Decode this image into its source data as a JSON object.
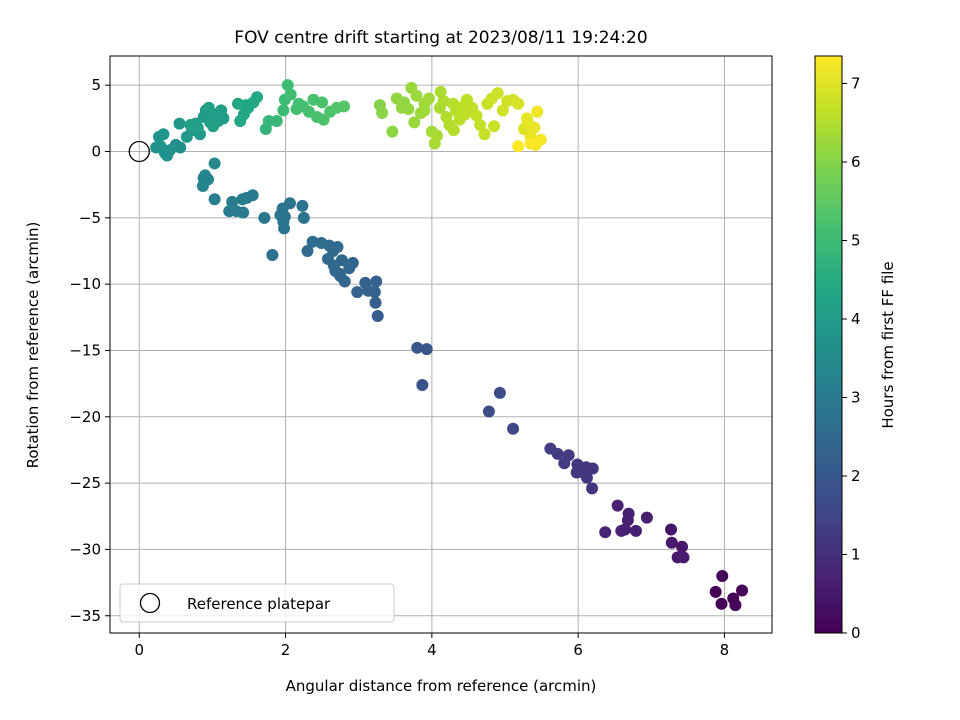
{
  "chart_data": {
    "type": "scatter",
    "title": "FOV centre drift starting at 2023/08/11 19:24:20",
    "xlabel": "Angular distance from reference (arcmin)",
    "ylabel": "Rotation from reference (arcmin)",
    "xlim": [
      -0.4,
      8.65
    ],
    "ylim": [
      -36.3,
      7.2
    ],
    "xticks": [
      0,
      2,
      4,
      6,
      8
    ],
    "yticks": [
      5,
      0,
      -5,
      -10,
      -15,
      -20,
      -25,
      -30,
      -35
    ],
    "xtick_labels": [
      "0",
      "2",
      "4",
      "6",
      "8"
    ],
    "ytick_labels": [
      "5",
      "0",
      "−5",
      "−10",
      "−15",
      "−20",
      "−25",
      "−30",
      "−35"
    ],
    "grid": true,
    "colormap": "viridis",
    "colorbar": {
      "label": "Hours from first FF file",
      "range": [
        0,
        7.35
      ],
      "ticks": [
        0,
        1,
        2,
        3,
        4,
        5,
        6,
        7
      ],
      "tick_labels": [
        "0",
        "1",
        "2",
        "3",
        "4",
        "5",
        "6",
        "7"
      ]
    },
    "legend": {
      "placement": "lower-left",
      "entries": [
        "Reference platepar"
      ]
    },
    "reference_point": {
      "x": 0,
      "y": 0
    },
    "series": [
      {
        "points": [
          {
            "x": 7.97,
            "y": -32.0,
            "c": 0.05
          },
          {
            "x": 7.88,
            "y": -33.2,
            "c": 0.04
          },
          {
            "x": 8.24,
            "y": -33.1,
            "c": 0.06
          },
          {
            "x": 8.12,
            "y": -33.7,
            "c": 0.08
          },
          {
            "x": 8.15,
            "y": -34.2,
            "c": 0.07
          },
          {
            "x": 7.96,
            "y": -34.1,
            "c": 0.03
          },
          {
            "x": 7.27,
            "y": -28.5,
            "c": 0.45
          },
          {
            "x": 7.28,
            "y": -29.5,
            "c": 0.5
          },
          {
            "x": 7.42,
            "y": -29.8,
            "c": 0.48
          },
          {
            "x": 7.36,
            "y": -30.6,
            "c": 0.52
          },
          {
            "x": 7.44,
            "y": -30.6,
            "c": 0.55
          },
          {
            "x": 6.94,
            "y": -27.6,
            "c": 0.6
          },
          {
            "x": 6.79,
            "y": -28.6,
            "c": 0.62
          },
          {
            "x": 6.69,
            "y": -27.3,
            "c": 0.65
          },
          {
            "x": 6.68,
            "y": -27.8,
            "c": 0.66
          },
          {
            "x": 6.59,
            "y": -28.6,
            "c": 0.7
          },
          {
            "x": 6.64,
            "y": -28.5,
            "c": 0.68
          },
          {
            "x": 6.54,
            "y": -26.7,
            "c": 0.72
          },
          {
            "x": 6.37,
            "y": -28.7,
            "c": 0.74
          },
          {
            "x": 5.62,
            "y": -22.4,
            "c": 1.3
          },
          {
            "x": 5.72,
            "y": -22.8,
            "c": 1.28
          },
          {
            "x": 5.81,
            "y": -23.5,
            "c": 1.26
          },
          {
            "x": 5.87,
            "y": -22.9,
            "c": 1.25
          },
          {
            "x": 5.99,
            "y": -23.6,
            "c": 1.22
          },
          {
            "x": 6.02,
            "y": -23.9,
            "c": 1.2
          },
          {
            "x": 6.07,
            "y": -24.2,
            "c": 1.18
          },
          {
            "x": 6.11,
            "y": -23.8,
            "c": 1.16
          },
          {
            "x": 5.98,
            "y": -24.2,
            "c": 1.15
          },
          {
            "x": 6.12,
            "y": -24.6,
            "c": 1.14
          },
          {
            "x": 6.2,
            "y": -23.9,
            "c": 1.12
          },
          {
            "x": 6.19,
            "y": -25.4,
            "c": 1.1
          },
          {
            "x": 5.11,
            "y": -20.9,
            "c": 1.55
          },
          {
            "x": 4.93,
            "y": -18.2,
            "c": 1.7
          },
          {
            "x": 4.78,
            "y": -19.6,
            "c": 1.75
          },
          {
            "x": 3.8,
            "y": -14.8,
            "c": 1.95
          },
          {
            "x": 3.93,
            "y": -14.9,
            "c": 1.97
          },
          {
            "x": 3.87,
            "y": -17.6,
            "c": 1.9
          },
          {
            "x": 3.26,
            "y": -12.4,
            "c": 2.15
          },
          {
            "x": 3.23,
            "y": -11.4,
            "c": 2.2
          },
          {
            "x": 3.22,
            "y": -10.6,
            "c": 2.25
          },
          {
            "x": 3.24,
            "y": -9.8,
            "c": 2.28
          },
          {
            "x": 3.09,
            "y": -9.9,
            "c": 2.3
          },
          {
            "x": 3.13,
            "y": -10.5,
            "c": 2.32
          },
          {
            "x": 2.98,
            "y": -10.6,
            "c": 2.35
          },
          {
            "x": 2.81,
            "y": -9.8,
            "c": 2.4
          },
          {
            "x": 2.73,
            "y": -9.2,
            "c": 2.42
          },
          {
            "x": 2.77,
            "y": -8.2,
            "c": 2.45
          },
          {
            "x": 2.87,
            "y": -8.8,
            "c": 2.46
          },
          {
            "x": 2.92,
            "y": -8.4,
            "c": 2.44
          },
          {
            "x": 2.66,
            "y": -8.6,
            "c": 2.48
          },
          {
            "x": 2.58,
            "y": -8.1,
            "c": 2.5
          },
          {
            "x": 2.65,
            "y": -7.5,
            "c": 2.52
          },
          {
            "x": 2.75,
            "y": -9.4,
            "c": 2.43
          },
          {
            "x": 2.68,
            "y": -9.0,
            "c": 2.47
          },
          {
            "x": 2.71,
            "y": -7.2,
            "c": 2.55
          },
          {
            "x": 2.6,
            "y": -7.1,
            "c": 2.56
          },
          {
            "x": 2.49,
            "y": -6.9,
            "c": 2.6
          },
          {
            "x": 2.37,
            "y": -6.8,
            "c": 2.62
          },
          {
            "x": 2.3,
            "y": -7.5,
            "c": 2.58
          },
          {
            "x": 2.23,
            "y": -4.1,
            "c": 2.8
          },
          {
            "x": 2.25,
            "y": -5.0,
            "c": 2.78
          },
          {
            "x": 2.06,
            "y": -3.9,
            "c": 2.85
          },
          {
            "x": 1.96,
            "y": -4.3,
            "c": 2.87
          },
          {
            "x": 1.98,
            "y": -5.8,
            "c": 2.83
          },
          {
            "x": 1.97,
            "y": -5.3,
            "c": 2.84
          },
          {
            "x": 1.93,
            "y": -4.8,
            "c": 2.86
          },
          {
            "x": 1.99,
            "y": -4.9,
            "c": 2.82
          },
          {
            "x": 1.82,
            "y": -7.8,
            "c": 2.7
          },
          {
            "x": 1.71,
            "y": -5.0,
            "c": 2.9
          },
          {
            "x": 1.55,
            "y": -3.3,
            "c": 3.0
          },
          {
            "x": 1.47,
            "y": -3.5,
            "c": 3.02
          },
          {
            "x": 1.41,
            "y": -3.6,
            "c": 3.03
          },
          {
            "x": 1.42,
            "y": -4.6,
            "c": 3.05
          },
          {
            "x": 1.33,
            "y": -4.5,
            "c": 3.07
          },
          {
            "x": 1.27,
            "y": -3.8,
            "c": 3.08
          },
          {
            "x": 1.23,
            "y": -4.5,
            "c": 3.09
          },
          {
            "x": 1.03,
            "y": -0.9,
            "c": 3.4
          },
          {
            "x": 1.03,
            "y": -3.6,
            "c": 3.15
          },
          {
            "x": 0.94,
            "y": -2.1,
            "c": 3.3
          },
          {
            "x": 0.9,
            "y": -1.8,
            "c": 3.32
          },
          {
            "x": 0.87,
            "y": -2.6,
            "c": 3.28
          },
          {
            "x": 0.88,
            "y": -2.0,
            "c": 3.31
          },
          {
            "x": 0.56,
            "y": 0.3,
            "c": 3.6
          },
          {
            "x": 0.5,
            "y": 0.5,
            "c": 3.65
          },
          {
            "x": 0.42,
            "y": 0.1,
            "c": 3.7
          },
          {
            "x": 0.35,
            "y": -0.1,
            "c": 3.72
          },
          {
            "x": 0.29,
            "y": 0.4,
            "c": 3.74
          },
          {
            "x": 0.23,
            "y": 0.3,
            "c": 3.75
          },
          {
            "x": 0.27,
            "y": 1.1,
            "c": 3.8
          },
          {
            "x": 0.33,
            "y": 1.3,
            "c": 3.82
          },
          {
            "x": 0.38,
            "y": -0.3,
            "c": 3.68
          },
          {
            "x": 0.55,
            "y": 2.1,
            "c": 3.9
          },
          {
            "x": 0.65,
            "y": 1.1,
            "c": 3.93
          },
          {
            "x": 0.72,
            "y": 1.6,
            "c": 3.95
          },
          {
            "x": 0.77,
            "y": 2.1,
            "c": 3.97
          },
          {
            "x": 0.83,
            "y": 1.3,
            "c": 3.99
          },
          {
            "x": 0.88,
            "y": 2.6,
            "c": 4.0
          },
          {
            "x": 0.91,
            "y": 3.1,
            "c": 4.02
          },
          {
            "x": 0.97,
            "y": 2.2,
            "c": 4.03
          },
          {
            "x": 1.02,
            "y": 2.8,
            "c": 4.05
          },
          {
            "x": 1.08,
            "y": 2.3,
            "c": 4.07
          },
          {
            "x": 1.12,
            "y": 3.1,
            "c": 4.08
          },
          {
            "x": 1.15,
            "y": 2.5,
            "c": 4.1
          },
          {
            "x": 0.95,
            "y": 3.3,
            "c": 4.11
          },
          {
            "x": 1.01,
            "y": 1.9,
            "c": 4.12
          },
          {
            "x": 0.8,
            "y": 1.8,
            "c": 4.13
          },
          {
            "x": 0.7,
            "y": 2.0,
            "c": 4.14
          },
          {
            "x": 1.35,
            "y": 3.6,
            "c": 4.3
          },
          {
            "x": 1.38,
            "y": 2.3,
            "c": 4.32
          },
          {
            "x": 1.43,
            "y": 2.8,
            "c": 4.34
          },
          {
            "x": 1.49,
            "y": 3.3,
            "c": 4.36
          },
          {
            "x": 1.56,
            "y": 3.7,
            "c": 4.4
          },
          {
            "x": 1.61,
            "y": 4.1,
            "c": 4.42
          },
          {
            "x": 1.46,
            "y": 3.5,
            "c": 4.38
          },
          {
            "x": 1.73,
            "y": 1.7,
            "c": 4.8
          },
          {
            "x": 1.77,
            "y": 2.3,
            "c": 4.85
          },
          {
            "x": 1.88,
            "y": 2.3,
            "c": 4.9
          },
          {
            "x": 1.97,
            "y": 3.1,
            "c": 4.95
          },
          {
            "x": 1.99,
            "y": 3.9,
            "c": 5.0
          },
          {
            "x": 2.03,
            "y": 5.0,
            "c": 5.05
          },
          {
            "x": 2.07,
            "y": 4.3,
            "c": 5.08
          },
          {
            "x": 2.15,
            "y": 3.2,
            "c": 5.1
          },
          {
            "x": 2.18,
            "y": 3.6,
            "c": 5.12
          },
          {
            "x": 2.24,
            "y": 3.4,
            "c": 5.14
          },
          {
            "x": 2.32,
            "y": 3.0,
            "c": 5.16
          },
          {
            "x": 2.38,
            "y": 3.9,
            "c": 5.2
          },
          {
            "x": 2.43,
            "y": 2.6,
            "c": 5.22
          },
          {
            "x": 2.5,
            "y": 3.7,
            "c": 5.24
          },
          {
            "x": 2.52,
            "y": 2.4,
            "c": 5.25
          },
          {
            "x": 2.61,
            "y": 3.0,
            "c": 5.3
          },
          {
            "x": 2.7,
            "y": 3.3,
            "c": 5.34
          },
          {
            "x": 2.8,
            "y": 3.4,
            "c": 5.36
          },
          {
            "x": 3.29,
            "y": 3.5,
            "c": 6.0
          },
          {
            "x": 3.32,
            "y": 2.9,
            "c": 6.05
          },
          {
            "x": 3.46,
            "y": 1.5,
            "c": 6.1
          },
          {
            "x": 3.52,
            "y": 4.0,
            "c": 6.12
          },
          {
            "x": 3.59,
            "y": 3.3,
            "c": 6.15
          },
          {
            "x": 3.68,
            "y": 3.2,
            "c": 6.18
          },
          {
            "x": 3.72,
            "y": 4.8,
            "c": 6.2
          },
          {
            "x": 3.76,
            "y": 2.2,
            "c": 6.22
          },
          {
            "x": 3.79,
            "y": 4.2,
            "c": 6.25
          },
          {
            "x": 3.85,
            "y": 2.9,
            "c": 6.28
          },
          {
            "x": 3.9,
            "y": 3.6,
            "c": 6.3
          },
          {
            "x": 3.96,
            "y": 4.0,
            "c": 6.33
          },
          {
            "x": 4.0,
            "y": 1.5,
            "c": 6.35
          },
          {
            "x": 4.04,
            "y": 0.6,
            "c": 6.37
          },
          {
            "x": 4.07,
            "y": 1.2,
            "c": 6.4
          },
          {
            "x": 4.11,
            "y": 3.3,
            "c": 6.42
          },
          {
            "x": 4.16,
            "y": 3.8,
            "c": 6.45
          },
          {
            "x": 4.2,
            "y": 2.6,
            "c": 6.48
          },
          {
            "x": 4.24,
            "y": 2.0,
            "c": 6.5
          },
          {
            "x": 4.29,
            "y": 3.6,
            "c": 6.52
          },
          {
            "x": 4.33,
            "y": 3.1,
            "c": 6.55
          },
          {
            "x": 4.38,
            "y": 2.4,
            "c": 6.58
          },
          {
            "x": 4.43,
            "y": 3.4,
            "c": 6.6
          },
          {
            "x": 4.48,
            "y": 3.9,
            "c": 6.62
          },
          {
            "x": 4.55,
            "y": 3.3,
            "c": 6.65
          },
          {
            "x": 4.61,
            "y": 2.7,
            "c": 6.68
          },
          {
            "x": 4.66,
            "y": 2.0,
            "c": 6.7
          },
          {
            "x": 4.72,
            "y": 1.3,
            "c": 6.72
          },
          {
            "x": 4.76,
            "y": 3.6,
            "c": 6.75
          },
          {
            "x": 4.82,
            "y": 4.0,
            "c": 6.78
          },
          {
            "x": 4.9,
            "y": 4.4,
            "c": 6.8
          },
          {
            "x": 4.97,
            "y": 3.1,
            "c": 6.83
          },
          {
            "x": 5.03,
            "y": 3.8,
            "c": 6.85
          },
          {
            "x": 5.11,
            "y": 3.9,
            "c": 6.88
          },
          {
            "x": 5.18,
            "y": 3.6,
            "c": 6.9
          },
          {
            "x": 5.26,
            "y": 1.7,
            "c": 7.0
          },
          {
            "x": 5.31,
            "y": 2.2,
            "c": 7.05
          },
          {
            "x": 5.35,
            "y": 1.1,
            "c": 7.1
          },
          {
            "x": 5.4,
            "y": 1.8,
            "c": 7.15
          },
          {
            "x": 5.44,
            "y": 3.0,
            "c": 7.2
          },
          {
            "x": 5.49,
            "y": 0.9,
            "c": 7.25
          },
          {
            "x": 5.42,
            "y": 0.5,
            "c": 7.28
          },
          {
            "x": 5.35,
            "y": 0.6,
            "c": 7.3
          },
          {
            "x": 5.18,
            "y": 0.4,
            "c": 7.32
          },
          {
            "x": 4.85,
            "y": 1.9,
            "c": 6.74
          },
          {
            "x": 4.3,
            "y": 1.6,
            "c": 6.53
          },
          {
            "x": 4.12,
            "y": 4.5,
            "c": 6.43
          },
          {
            "x": 3.62,
            "y": 3.7,
            "c": 6.16
          },
          {
            "x": 3.9,
            "y": 3.1,
            "c": 6.31
          },
          {
            "x": 4.45,
            "y": 2.8,
            "c": 6.61
          },
          {
            "x": 5.3,
            "y": 2.5,
            "c": 7.08
          }
        ]
      }
    ]
  }
}
